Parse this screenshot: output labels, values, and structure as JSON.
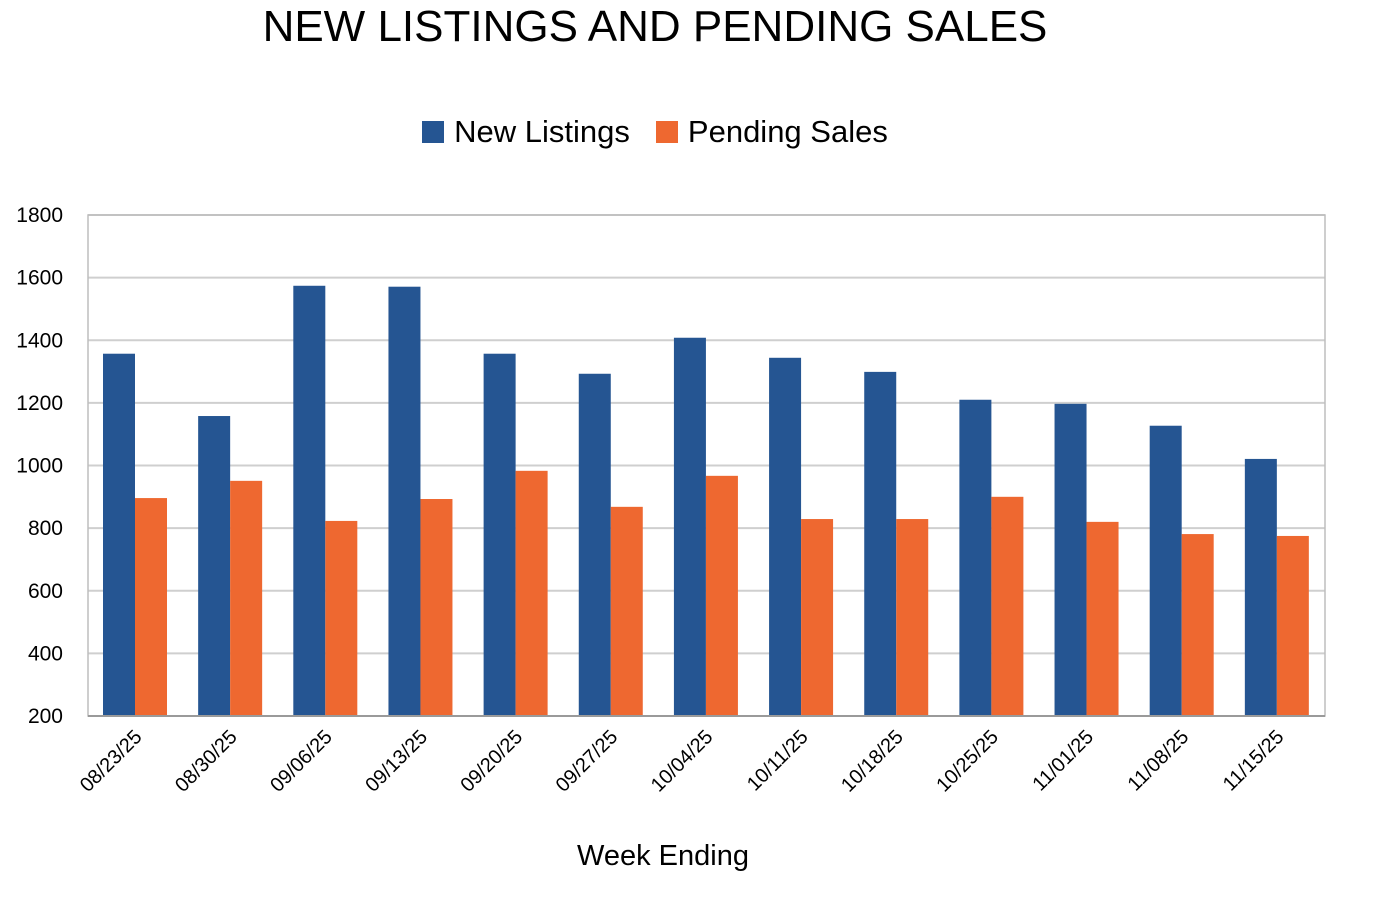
{
  "chart_data": {
    "type": "bar",
    "title": "NEW LISTINGS AND PENDING SALES",
    "xlabel": "Week Ending",
    "ylabel": "",
    "ylim": [
      200,
      1800
    ],
    "yticks": [
      200,
      400,
      600,
      800,
      1000,
      1200,
      1400,
      1600,
      1800
    ],
    "grid": true,
    "legend_position": "top-center",
    "categories": [
      "08/23/25",
      "08/30/25",
      "09/06/25",
      "09/13/25",
      "09/20/25",
      "09/27/25",
      "10/04/25",
      "10/11/25",
      "10/18/25",
      "10/25/25",
      "11/01/25",
      "11/08/25",
      "11/15/25"
    ],
    "series": [
      {
        "name": "New Listings",
        "color": "#255592",
        "values": [
          1357,
          1158,
          1574,
          1571,
          1357,
          1293,
          1408,
          1344,
          1299,
          1210,
          1197,
          1127,
          1021
        ]
      },
      {
        "name": "Pending Sales",
        "color": "#EE6830",
        "values": [
          896,
          951,
          823,
          893,
          983,
          868,
          967,
          829,
          829,
          900,
          820,
          781,
          775
        ]
      }
    ]
  }
}
